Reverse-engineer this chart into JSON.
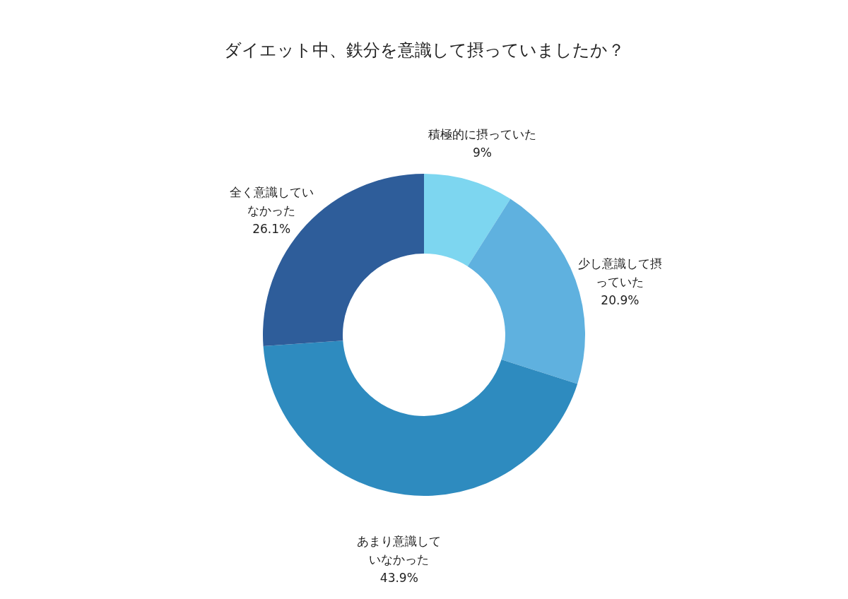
{
  "chart_data": {
    "type": "donut",
    "title": "ダイエット中、鉄分を意識して摂っていましたか？",
    "categories": [
      "積極的に摂っていた",
      "少し意識して摂っていた",
      "あまり意識していなかった",
      "全く意識していなかった"
    ],
    "values": [
      9,
      20.9,
      43.9,
      26.1
    ],
    "value_labels": [
      "9%",
      "20.9%",
      "43.9%",
      "26.1%"
    ],
    "colors": [
      "#7dd6f0",
      "#5fb1df",
      "#2e8bbf",
      "#2e5d9a"
    ],
    "legend": false
  }
}
